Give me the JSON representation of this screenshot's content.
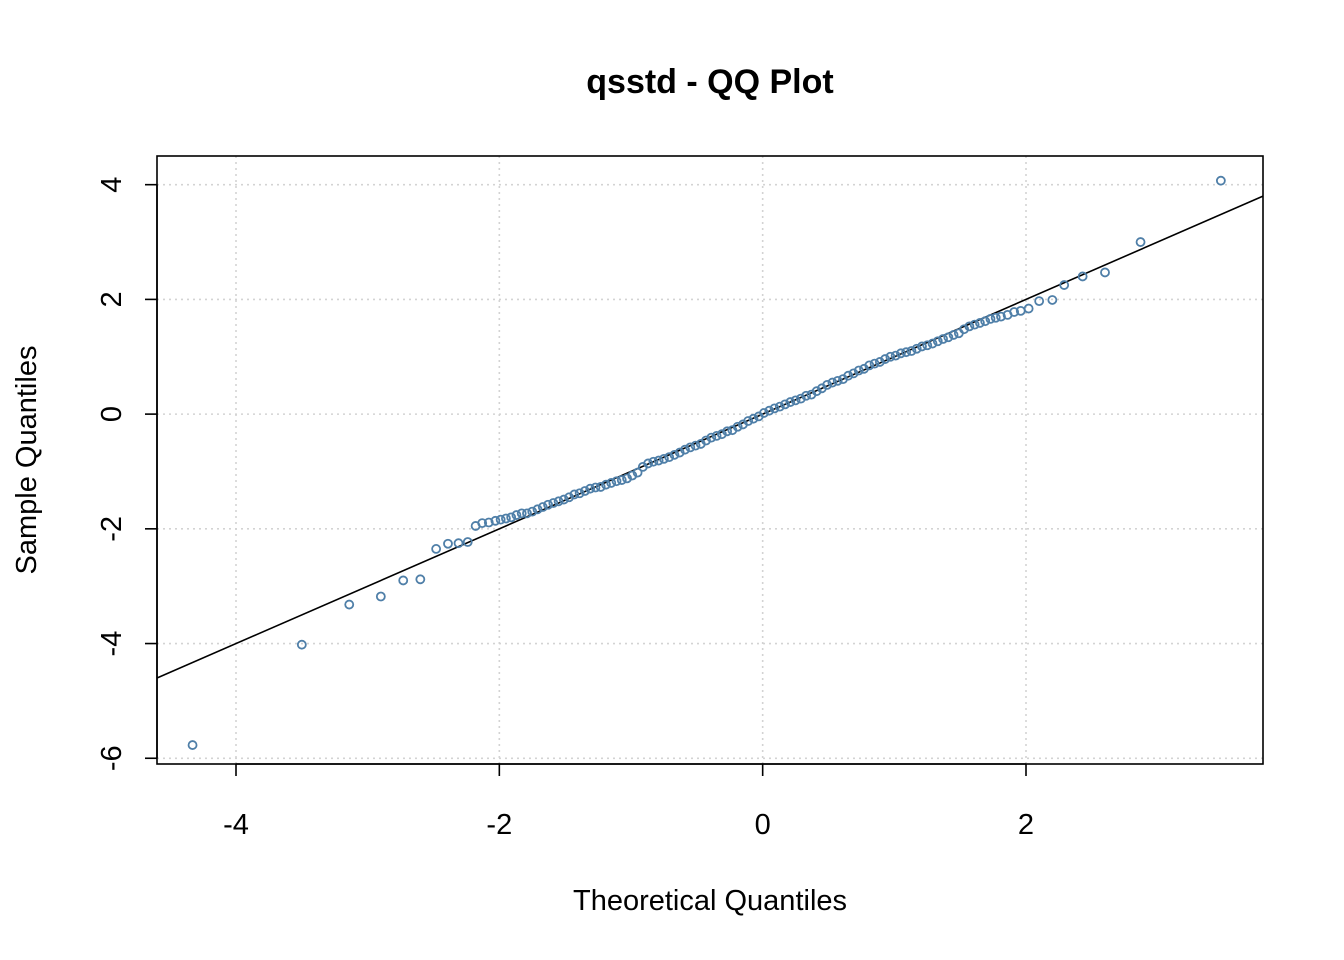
{
  "chart_data": {
    "type": "scatter",
    "title": "qsstd - QQ Plot",
    "xlabel": "Theoretical Quantiles",
    "ylabel": "Sample Quantiles",
    "xlim": [
      -4.6,
      3.8
    ],
    "ylim": [
      -6.1,
      4.5
    ],
    "xticks": [
      -4,
      -2,
      0,
      2
    ],
    "yticks": [
      -6,
      -4,
      -2,
      0,
      2,
      4
    ],
    "grid": true,
    "grid_color": "#d3d3d3",
    "point_color": "#4f7fa8",
    "line_color": "#000000",
    "reference_line": {
      "intercept": 0.0,
      "slope": 1.0
    },
    "points": {
      "x": [
        -4.33,
        -3.5,
        -3.14,
        -2.9,
        -2.73,
        -2.6,
        -2.48,
        -2.39,
        -2.31,
        -2.24,
        -2.18,
        -2.13,
        -2.08,
        -2.03,
        -1.99,
        -1.95,
        -1.91,
        -1.87,
        -1.83,
        -1.79,
        -1.75,
        -1.71,
        -1.67,
        -1.63,
        -1.59,
        -1.55,
        -1.51,
        -1.47,
        -1.43,
        -1.39,
        -1.35,
        -1.31,
        -1.27,
        -1.23,
        -1.19,
        -1.15,
        -1.11,
        -1.07,
        -1.03,
        -0.99,
        -0.95,
        -0.91,
        -0.87,
        -0.83,
        -0.79,
        -0.75,
        -0.71,
        -0.67,
        -0.63,
        -0.59,
        -0.55,
        -0.51,
        -0.47,
        -0.43,
        -0.39,
        -0.35,
        -0.31,
        -0.27,
        -0.23,
        -0.19,
        -0.15,
        -0.11,
        -0.07,
        -0.03,
        0.01,
        0.05,
        0.09,
        0.13,
        0.17,
        0.21,
        0.25,
        0.29,
        0.33,
        0.37,
        0.41,
        0.45,
        0.49,
        0.53,
        0.57,
        0.61,
        0.65,
        0.69,
        0.73,
        0.77,
        0.81,
        0.85,
        0.89,
        0.93,
        0.97,
        1.01,
        1.05,
        1.09,
        1.13,
        1.17,
        1.21,
        1.25,
        1.29,
        1.33,
        1.37,
        1.41,
        1.45,
        1.49,
        1.53,
        1.57,
        1.61,
        1.65,
        1.69,
        1.73,
        1.77,
        1.81,
        1.86,
        1.91,
        1.96,
        2.02,
        2.1,
        2.2,
        2.29,
        2.43,
        2.6,
        2.87,
        3.48
      ],
      "y": [
        -5.77,
        -4.02,
        -3.32,
        -3.18,
        -2.9,
        -2.88,
        -2.35,
        -2.26,
        -2.25,
        -2.23,
        -1.95,
        -1.9,
        -1.89,
        -1.86,
        -1.84,
        -1.82,
        -1.8,
        -1.76,
        -1.73,
        -1.73,
        -1.7,
        -1.66,
        -1.62,
        -1.58,
        -1.55,
        -1.52,
        -1.49,
        -1.45,
        -1.4,
        -1.38,
        -1.34,
        -1.3,
        -1.28,
        -1.27,
        -1.23,
        -1.2,
        -1.17,
        -1.15,
        -1.12,
        -1.07,
        -1.02,
        -0.92,
        -0.86,
        -0.83,
        -0.81,
        -0.78,
        -0.75,
        -0.71,
        -0.67,
        -0.62,
        -0.58,
        -0.55,
        -0.52,
        -0.46,
        -0.41,
        -0.38,
        -0.35,
        -0.3,
        -0.28,
        -0.22,
        -0.18,
        -0.12,
        -0.08,
        -0.04,
        0.02,
        0.06,
        0.1,
        0.13,
        0.17,
        0.21,
        0.24,
        0.27,
        0.32,
        0.34,
        0.4,
        0.45,
        0.51,
        0.55,
        0.58,
        0.61,
        0.67,
        0.71,
        0.76,
        0.79,
        0.85,
        0.88,
        0.91,
        0.96,
        1.0,
        1.02,
        1.06,
        1.08,
        1.1,
        1.14,
        1.18,
        1.2,
        1.23,
        1.27,
        1.31,
        1.34,
        1.38,
        1.41,
        1.48,
        1.53,
        1.56,
        1.59,
        1.62,
        1.66,
        1.68,
        1.7,
        1.73,
        1.78,
        1.8,
        1.84,
        1.97,
        1.99,
        2.25,
        2.4,
        2.47,
        3.0,
        4.07
      ]
    }
  }
}
